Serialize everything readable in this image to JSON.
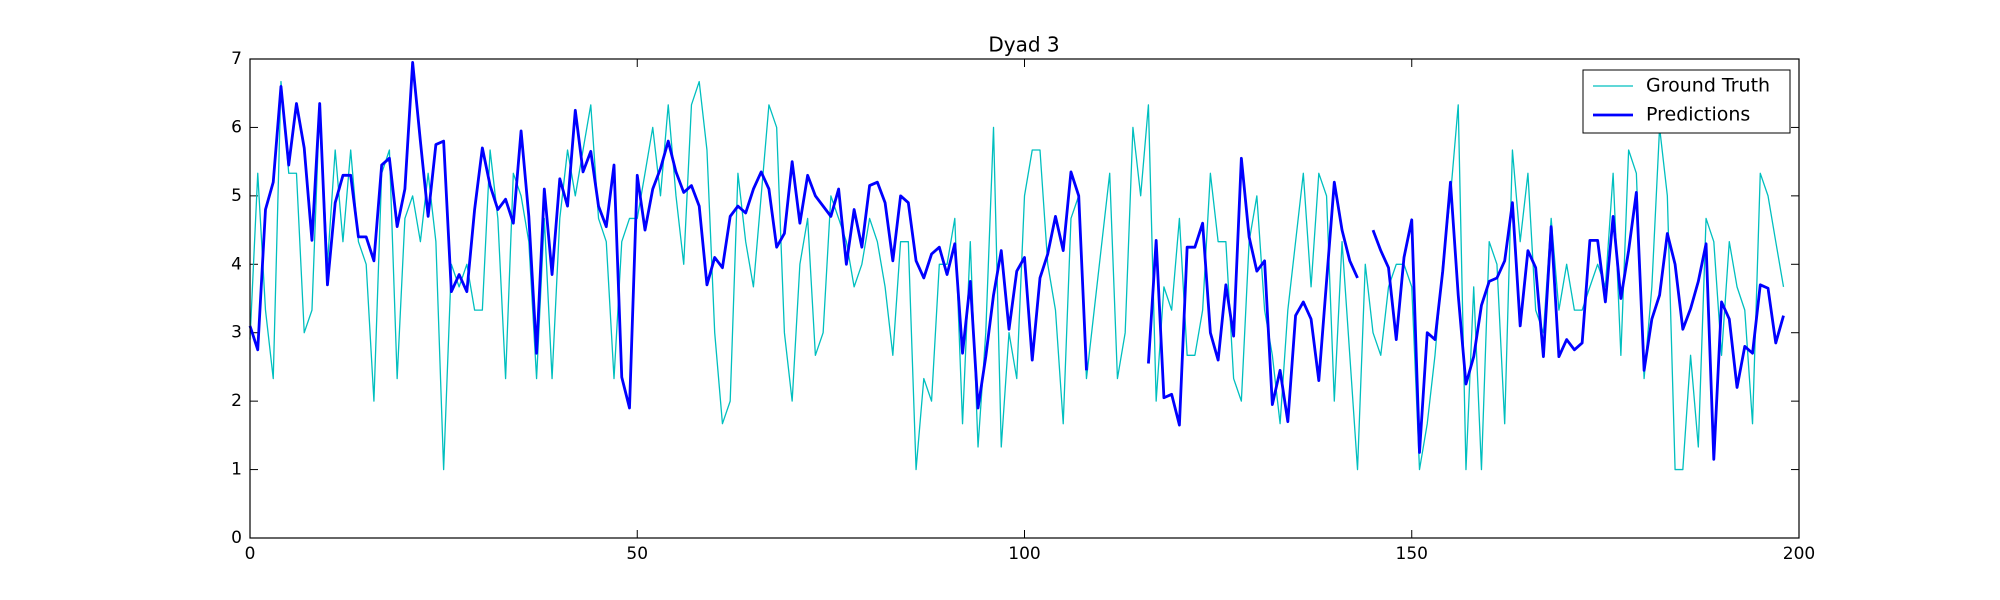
{
  "chart_data": {
    "type": "line",
    "title": "Dyad 3",
    "x": [
      0,
      1,
      2,
      3,
      4,
      5,
      6,
      7,
      8,
      9,
      10,
      11,
      12,
      13,
      14,
      15,
      16,
      17,
      18,
      19,
      20,
      21,
      22,
      23,
      24,
      25,
      26,
      27,
      28,
      29,
      30,
      31,
      32,
      33,
      34,
      35,
      36,
      37,
      38,
      39,
      40,
      41,
      42,
      43,
      44,
      45,
      46,
      47,
      48,
      49,
      50,
      51,
      52,
      53,
      54,
      55,
      56,
      57,
      58,
      59,
      60,
      61,
      62,
      63,
      64,
      65,
      66,
      67,
      68,
      69,
      70,
      71,
      72,
      73,
      74,
      75,
      76,
      77,
      78,
      79,
      80,
      81,
      82,
      83,
      84,
      85,
      86,
      87,
      88,
      89,
      90,
      91,
      92,
      93,
      94,
      95,
      96,
      97,
      98,
      99,
      100,
      101,
      102,
      103,
      104,
      105,
      106,
      107,
      108,
      109,
      110,
      111,
      112,
      113,
      114,
      115,
      116,
      117,
      118,
      119,
      120,
      121,
      122,
      123,
      124,
      125,
      126,
      127,
      128,
      129,
      130,
      131,
      132,
      133,
      134,
      135,
      136,
      137,
      138,
      139,
      140,
      141,
      142,
      143,
      144,
      145,
      146,
      147,
      148,
      149,
      150,
      151,
      152,
      153,
      154,
      155,
      156,
      157,
      158,
      159,
      160,
      161,
      162,
      163,
      164,
      165,
      166,
      167,
      168,
      169,
      170,
      171,
      172,
      173,
      174,
      175,
      176,
      177,
      178,
      179,
      180,
      181,
      182,
      183,
      184,
      185,
      186,
      187,
      188,
      189,
      190,
      191,
      192,
      193,
      194,
      195,
      196,
      197,
      198
    ],
    "series": [
      {
        "name": "Ground Truth",
        "color": "#00bfbf",
        "width": 1.3,
        "values": [
          2.9,
          5.33,
          3.33,
          2.33,
          6.67,
          5.33,
          5.33,
          3.0,
          3.33,
          6.33,
          4.0,
          5.67,
          4.33,
          5.67,
          4.33,
          4.0,
          2.0,
          5.33,
          5.67,
          2.33,
          4.67,
          5.0,
          4.33,
          5.33,
          4.33,
          1.0,
          4.0,
          3.67,
          4.0,
          3.33,
          3.33,
          5.67,
          4.67,
          2.33,
          5.33,
          5.0,
          4.33,
          2.33,
          4.67,
          2.33,
          4.67,
          5.67,
          5.0,
          5.67,
          6.33,
          4.67,
          4.33,
          2.33,
          4.33,
          4.67,
          4.67,
          5.33,
          6.0,
          5.0,
          6.33,
          5.0,
          4.0,
          6.33,
          6.67,
          5.67,
          3.0,
          1.67,
          2.0,
          5.33,
          4.33,
          3.67,
          5.0,
          6.33,
          6.0,
          3.0,
          2.0,
          4.0,
          4.67,
          2.67,
          3.0,
          5.0,
          4.67,
          4.33,
          3.67,
          4.0,
          4.67,
          4.33,
          3.67,
          2.67,
          4.33,
          4.33,
          1.0,
          2.33,
          2.0,
          4.0,
          4.0,
          4.67,
          1.67,
          4.33,
          1.33,
          3.0,
          6.0,
          1.33,
          3.0,
          2.33,
          5.0,
          5.67,
          5.67,
          4.0,
          3.33,
          1.67,
          4.67,
          5.0,
          2.33,
          3.33,
          4.33,
          5.33,
          2.33,
          3.0,
          6.0,
          5.0,
          6.33,
          2.0,
          3.67,
          3.33,
          4.67,
          2.67,
          2.67,
          3.33,
          5.33,
          4.33,
          4.33,
          2.33,
          2.0,
          4.33,
          5.0,
          3.33,
          2.67,
          1.67,
          3.33,
          4.33,
          5.33,
          3.67,
          5.33,
          5.0,
          2.0,
          4.33,
          2.67,
          1.0,
          4.0,
          3.0,
          2.67,
          3.67,
          4.0,
          4.0,
          3.67,
          1.0,
          1.67,
          2.67,
          4.0,
          5.0,
          6.33,
          1.0,
          3.67,
          1.0,
          4.33,
          4.0,
          1.67,
          5.67,
          4.33,
          5.33,
          3.33,
          3.0,
          4.67,
          3.33,
          4.0,
          3.33,
          3.33,
          3.67,
          4.0,
          3.67,
          5.33,
          2.67,
          5.67,
          5.33,
          2.33,
          3.67,
          6.0,
          5.0,
          1.0,
          1.0,
          2.67,
          1.33,
          4.67,
          4.33,
          2.67,
          4.33,
          3.67,
          3.33,
          1.67,
          5.33,
          5.0,
          4.33,
          3.67
        ]
      },
      {
        "name": "Predictions",
        "color": "#0000ff",
        "width": 2.8,
        "values": [
          3.1,
          2.75,
          4.8,
          5.2,
          6.6,
          5.45,
          6.35,
          5.7,
          4.35,
          6.35,
          3.7,
          4.9,
          5.3,
          5.3,
          4.4,
          4.4,
          4.05,
          5.45,
          5.55,
          4.55,
          5.1,
          6.95,
          5.8,
          4.7,
          5.75,
          5.8,
          3.6,
          3.85,
          3.6,
          4.8,
          5.7,
          5.15,
          4.8,
          4.95,
          4.6,
          5.95,
          4.7,
          2.7,
          5.1,
          3.85,
          5.25,
          4.85,
          6.25,
          5.35,
          5.65,
          4.85,
          4.55,
          5.45,
          2.35,
          1.9,
          5.3,
          4.5,
          5.1,
          5.4,
          5.8,
          5.35,
          5.05,
          5.15,
          4.85,
          3.7,
          4.1,
          3.95,
          4.7,
          4.85,
          4.75,
          5.1,
          5.35,
          5.1,
          4.25,
          4.45,
          5.5,
          4.6,
          5.3,
          5.0,
          4.85,
          4.7,
          5.1,
          4.0,
          4.8,
          4.25,
          5.15,
          5.2,
          4.9,
          4.05,
          5.0,
          4.9,
          4.05,
          3.8,
          4.15,
          4.25,
          3.85,
          4.3,
          2.7,
          3.75,
          1.9,
          2.65,
          3.55,
          4.2,
          3.05,
          3.9,
          4.1,
          2.6,
          3.8,
          4.15,
          4.7,
          4.2,
          5.35,
          5.0,
          2.45,
          null,
          null,
          null,
          null,
          null,
          null,
          null,
          2.55,
          4.35,
          2.05,
          2.1,
          1.65,
          4.25,
          4.25,
          4.6,
          3.0,
          2.6,
          3.7,
          2.95,
          5.55,
          4.4,
          3.9,
          4.05,
          1.95,
          2.45,
          1.7,
          3.25,
          3.45,
          3.2,
          2.3,
          3.75,
          5.2,
          4.5,
          4.05,
          3.8,
          null,
          4.5,
          4.2,
          3.95,
          2.9,
          4.1,
          4.65,
          1.25,
          3.0,
          2.9,
          3.9,
          5.2,
          3.55,
          2.25,
          2.65,
          3.4,
          3.75,
          3.8,
          4.05,
          4.9,
          3.1,
          4.2,
          3.95,
          2.65,
          4.55,
          2.65,
          2.9,
          2.75,
          2.85,
          4.35,
          4.35,
          3.45,
          4.7,
          3.5,
          4.2,
          5.05,
          2.45,
          3.2,
          3.55,
          4.45,
          4.0,
          3.05,
          3.35,
          3.75,
          4.3,
          1.15,
          3.45,
          3.2,
          2.2,
          2.8,
          2.7,
          3.7,
          3.65,
          2.85,
          3.25
        ]
      }
    ],
    "xlim": [
      0,
      200
    ],
    "xticks": [
      0,
      50,
      100,
      150,
      200
    ],
    "ylim": [
      0,
      7
    ],
    "yticks": [
      0,
      1,
      2,
      3,
      4,
      5,
      6,
      7
    ],
    "legend": "upper right",
    "grid": false
  }
}
